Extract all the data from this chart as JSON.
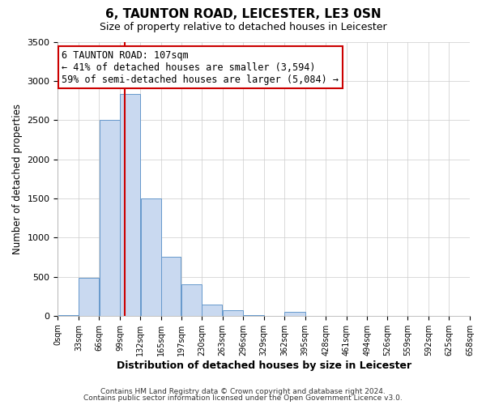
{
  "title": "6, TAUNTON ROAD, LEICESTER, LE3 0SN",
  "subtitle": "Size of property relative to detached houses in Leicester",
  "xlabel": "Distribution of detached houses by size in Leicester",
  "ylabel": "Number of detached properties",
  "bin_edges": [
    0,
    33,
    66,
    99,
    132,
    165,
    197,
    230,
    263,
    296,
    329,
    362,
    395,
    428,
    461,
    494,
    526,
    559,
    592,
    625,
    658
  ],
  "bin_labels": [
    "0sqm",
    "33sqm",
    "66sqm",
    "99sqm",
    "132sqm",
    "165sqm",
    "197sqm",
    "230sqm",
    "263sqm",
    "296sqm",
    "329sqm",
    "362sqm",
    "395sqm",
    "428sqm",
    "461sqm",
    "494sqm",
    "526sqm",
    "559sqm",
    "592sqm",
    "625sqm",
    "658sqm"
  ],
  "counts": [
    10,
    480,
    2500,
    2830,
    1500,
    750,
    400,
    145,
    75,
    10,
    0,
    55,
    0,
    0,
    0,
    0,
    0,
    0,
    0,
    0
  ],
  "property_size": 107,
  "vline_x": 107,
  "bar_facecolor": "#c9d9f0",
  "bar_edgecolor": "#6699cc",
  "vline_color": "#cc0000",
  "annotation_line1": "6 TAUNTON ROAD: 107sqm",
  "annotation_line2": "← 41% of detached houses are smaller (3,594)",
  "annotation_line3": "59% of semi-detached houses are larger (5,084) →",
  "annotation_box_edgecolor": "#cc0000",
  "annotation_fontsize": 8.5,
  "ylim": [
    0,
    3500
  ],
  "yticks": [
    0,
    500,
    1000,
    1500,
    2000,
    2500,
    3000,
    3500
  ],
  "footer1": "Contains HM Land Registry data © Crown copyright and database right 2024.",
  "footer2": "Contains public sector information licensed under the Open Government Licence v3.0.",
  "background_color": "#ffffff",
  "grid_color": "#cccccc",
  "title_fontsize": 11,
  "subtitle_fontsize": 9
}
